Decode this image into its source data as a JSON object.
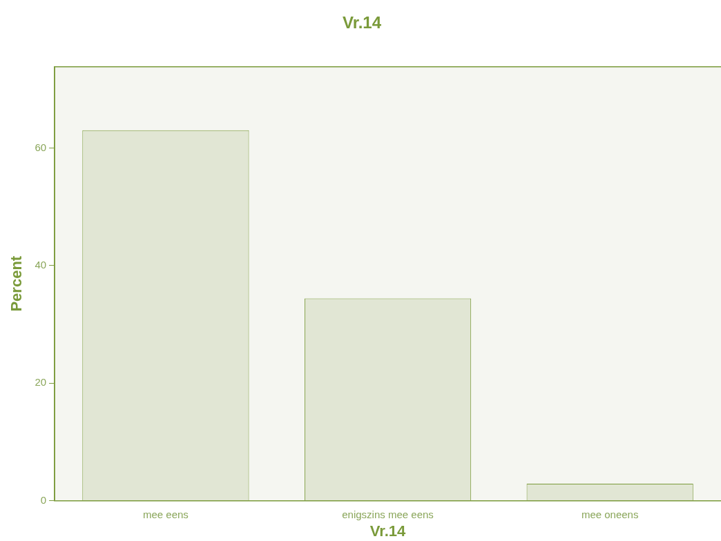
{
  "chart_data": {
    "type": "bar",
    "title": "Vr.14",
    "xlabel": "Vr.14",
    "ylabel": "Percent",
    "categories": [
      "mee eens",
      "enigszins mee eens",
      "mee oneens"
    ],
    "values": [
      63.0,
      34.4,
      2.9
    ],
    "color": "#e1e6d4",
    "ylim": [
      0,
      73.8
    ],
    "yticks": [
      0,
      20,
      40,
      60
    ],
    "grid": false,
    "legend": false
  }
}
